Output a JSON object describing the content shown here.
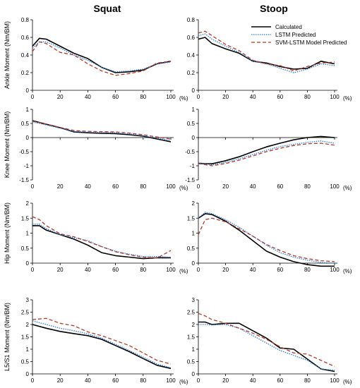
{
  "columns": [
    "Squat",
    "Stoop"
  ],
  "legend": [
    {
      "label": "Calculated",
      "color": "#000000",
      "dash": "none"
    },
    {
      "label": "LSTM Predicted",
      "color": "#2f7fd6",
      "dash": "1.5,1.5"
    },
    {
      "label": "SVM-LSTM Model Predicted",
      "color": "#b23a2a",
      "dash": "5,3"
    }
  ],
  "x_unit": "(%)",
  "chart_data": [
    {
      "type": "line",
      "id": "ankle-squat",
      "ylabel": "Ankle Moment (Nm/BM)",
      "xlim": [
        0,
        100
      ],
      "ylim": [
        0,
        0.8
      ],
      "xticks": [
        0,
        20,
        40,
        60,
        80,
        100
      ],
      "yticks": [
        "0",
        "0.2",
        "0.4",
        "0.6",
        "0.8"
      ],
      "x": [
        0,
        5,
        10,
        20,
        30,
        40,
        50,
        60,
        70,
        80,
        90,
        100
      ],
      "series": [
        {
          "name": "Calculated",
          "values": [
            0.5,
            0.59,
            0.58,
            0.5,
            0.42,
            0.36,
            0.26,
            0.2,
            0.21,
            0.23,
            0.3,
            0.33
          ]
        },
        {
          "name": "LSTM Predicted",
          "values": [
            0.48,
            0.55,
            0.55,
            0.48,
            0.4,
            0.34,
            0.26,
            0.21,
            0.22,
            0.24,
            0.3,
            0.32
          ]
        },
        {
          "name": "SVM-LSTM Model Predicted",
          "values": [
            0.44,
            0.55,
            0.53,
            0.43,
            0.4,
            0.3,
            0.22,
            0.17,
            0.19,
            0.22,
            0.31,
            0.33
          ]
        }
      ]
    },
    {
      "type": "line",
      "id": "ankle-stoop",
      "ylabel": "",
      "xlim": [
        0,
        100
      ],
      "ylim": [
        0,
        0.8
      ],
      "xticks": [
        0,
        20,
        40,
        60,
        80,
        100
      ],
      "yticks": [
        "0",
        "0.2",
        "0.4",
        "0.6",
        "0.8"
      ],
      "x": [
        0,
        5,
        10,
        20,
        30,
        40,
        50,
        60,
        70,
        80,
        90,
        100
      ],
      "series": [
        {
          "name": "Calculated",
          "values": [
            0.58,
            0.6,
            0.53,
            0.47,
            0.42,
            0.33,
            0.31,
            0.27,
            0.24,
            0.25,
            0.33,
            0.3
          ]
        },
        {
          "name": "LSTM Predicted",
          "values": [
            0.62,
            0.64,
            0.58,
            0.5,
            0.43,
            0.33,
            0.3,
            0.25,
            0.2,
            0.24,
            0.3,
            0.28
          ]
        },
        {
          "name": "SVM-LSTM Model Predicted",
          "values": [
            0.65,
            0.67,
            0.62,
            0.52,
            0.45,
            0.34,
            0.3,
            0.28,
            0.22,
            0.27,
            0.31,
            0.32
          ]
        }
      ]
    },
    {
      "type": "line",
      "id": "knee-squat",
      "ylabel": "Knee Moment (Nm/BM)",
      "xlim": [
        0,
        100
      ],
      "ylim": [
        -1.5,
        1
      ],
      "xticks": [
        0,
        20,
        40,
        60,
        80,
        100
      ],
      "yticks": [
        "-1.5",
        "-1",
        "-0.5",
        "0",
        "0.5",
        "1"
      ],
      "x": [
        0,
        10,
        20,
        30,
        40,
        50,
        60,
        70,
        80,
        90,
        100
      ],
      "series": [
        {
          "name": "Calculated",
          "values": [
            0.6,
            0.47,
            0.35,
            0.2,
            0.17,
            0.15,
            0.14,
            0.1,
            0.05,
            -0.05,
            -0.15
          ]
        },
        {
          "name": "LSTM Predicted",
          "values": [
            0.55,
            0.45,
            0.33,
            0.22,
            0.19,
            0.18,
            0.17,
            0.13,
            0.07,
            -0.02,
            -0.1
          ]
        },
        {
          "name": "SVM-LSTM Model Predicted",
          "values": [
            0.58,
            0.48,
            0.36,
            0.25,
            0.22,
            0.21,
            0.2,
            0.16,
            0.1,
            0.02,
            -0.05
          ]
        }
      ]
    },
    {
      "type": "line",
      "id": "knee-stoop",
      "ylabel": "",
      "xlim": [
        0,
        100
      ],
      "ylim": [
        -1.5,
        1
      ],
      "xticks": [
        0,
        20,
        40,
        60,
        80,
        100
      ],
      "yticks": [
        "-1.5",
        "-1",
        "-0.5",
        "0",
        "0.5",
        "1"
      ],
      "x": [
        0,
        10,
        20,
        30,
        40,
        50,
        60,
        70,
        80,
        90,
        100
      ],
      "series": [
        {
          "name": "Calculated",
          "values": [
            -0.92,
            -0.93,
            -0.82,
            -0.68,
            -0.5,
            -0.33,
            -0.2,
            -0.08,
            0.0,
            0.04,
            0.0
          ]
        },
        {
          "name": "LSTM Predicted",
          "values": [
            -0.88,
            -0.97,
            -0.88,
            -0.75,
            -0.6,
            -0.45,
            -0.32,
            -0.24,
            -0.17,
            -0.12,
            -0.2
          ]
        },
        {
          "name": "SVM-LSTM Model Predicted",
          "values": [
            -0.92,
            -1.0,
            -0.92,
            -0.8,
            -0.65,
            -0.5,
            -0.38,
            -0.28,
            -0.22,
            -0.2,
            -0.27
          ]
        }
      ]
    },
    {
      "type": "line",
      "id": "hip-squat",
      "ylabel": "Hip Moment (Nm/BM)",
      "xlim": [
        0,
        100
      ],
      "ylim": [
        0,
        2
      ],
      "xticks": [
        0,
        20,
        40,
        60,
        80,
        100
      ],
      "yticks": [
        "0",
        "0.5",
        "1",
        "1.5",
        "2"
      ],
      "x": [
        0,
        5,
        10,
        20,
        30,
        40,
        50,
        60,
        70,
        80,
        90,
        100
      ],
      "series": [
        {
          "name": "Calculated",
          "values": [
            1.25,
            1.25,
            1.1,
            0.95,
            0.8,
            0.6,
            0.35,
            0.25,
            0.2,
            0.15,
            0.18,
            0.18
          ]
        },
        {
          "name": "LSTM Predicted",
          "values": [
            1.3,
            1.3,
            1.15,
            0.95,
            0.85,
            0.75,
            0.55,
            0.4,
            0.3,
            0.22,
            0.22,
            0.2
          ]
        },
        {
          "name": "SVM-LSTM Model Predicted",
          "values": [
            1.55,
            1.45,
            1.25,
            0.98,
            0.88,
            0.72,
            0.55,
            0.38,
            0.28,
            0.2,
            0.17,
            0.42
          ]
        }
      ]
    },
    {
      "type": "line",
      "id": "hip-stoop",
      "ylabel": "",
      "xlim": [
        0,
        100
      ],
      "ylim": [
        0,
        2
      ],
      "xticks": [
        0,
        20,
        40,
        60,
        80,
        100
      ],
      "yticks": [
        "0",
        "0.5",
        "1",
        "1.5",
        "2"
      ],
      "x": [
        0,
        5,
        10,
        20,
        30,
        40,
        50,
        60,
        70,
        80,
        90,
        100
      ],
      "series": [
        {
          "name": "Calculated",
          "values": [
            1.5,
            1.65,
            1.62,
            1.4,
            1.1,
            0.75,
            0.4,
            0.2,
            0.05,
            -0.05,
            -0.1,
            -0.1
          ]
        },
        {
          "name": "LSTM Predicted",
          "values": [
            1.5,
            1.7,
            1.65,
            1.45,
            1.2,
            0.9,
            0.6,
            0.35,
            0.2,
            0.1,
            0.02,
            0.0
          ]
        },
        {
          "name": "SVM-LSTM Model Predicted",
          "values": [
            0.95,
            1.45,
            1.5,
            1.38,
            1.15,
            0.9,
            0.62,
            0.42,
            0.25,
            0.15,
            0.08,
            0.05
          ]
        }
      ]
    },
    {
      "type": "line",
      "id": "l5s1-squat",
      "ylabel": "L5/S1 Moment (Nm/BM)",
      "xlim": [
        0,
        100
      ],
      "ylim": [
        0,
        3
      ],
      "xticks": [
        0,
        20,
        40,
        60,
        80,
        100
      ],
      "yticks": [
        "0",
        "0.5",
        "1",
        "1.5",
        "2",
        "2.5",
        "3"
      ],
      "x": [
        0,
        10,
        20,
        30,
        40,
        50,
        60,
        70,
        80,
        90,
        100
      ],
      "series": [
        {
          "name": "Calculated",
          "values": [
            2.0,
            1.85,
            1.72,
            1.63,
            1.55,
            1.4,
            1.15,
            0.9,
            0.62,
            0.35,
            0.22
          ]
        },
        {
          "name": "LSTM Predicted",
          "values": [
            2.15,
            2.0,
            1.85,
            1.75,
            1.62,
            1.45,
            1.2,
            0.95,
            0.68,
            0.4,
            0.25
          ]
        },
        {
          "name": "SVM-LSTM Model Predicted",
          "values": [
            2.2,
            2.25,
            2.05,
            1.95,
            1.7,
            1.55,
            1.35,
            1.15,
            0.85,
            0.55,
            0.4
          ]
        }
      ]
    },
    {
      "type": "line",
      "id": "l5s1-stoop",
      "ylabel": "",
      "xlim": [
        0,
        100
      ],
      "ylim": [
        0,
        3
      ],
      "xticks": [
        0,
        20,
        40,
        60,
        80,
        100
      ],
      "yticks": [
        "0",
        "0.5",
        "1",
        "1.5",
        "2",
        "2.5",
        "3"
      ],
      "x": [
        0,
        5,
        10,
        20,
        30,
        40,
        50,
        60,
        70,
        80,
        90,
        100
      ],
      "series": [
        {
          "name": "Calculated",
          "values": [
            2.1,
            2.1,
            2.0,
            2.05,
            2.05,
            1.75,
            1.45,
            1.05,
            1.0,
            0.6,
            0.2,
            0.1
          ]
        },
        {
          "name": "LSTM Predicted",
          "values": [
            2.0,
            2.0,
            1.98,
            2.0,
            1.85,
            1.55,
            1.25,
            0.95,
            0.75,
            0.55,
            0.2,
            0.15
          ]
        },
        {
          "name": "SVM-LSTM Model Predicted",
          "values": [
            2.45,
            2.35,
            2.2,
            2.05,
            1.85,
            1.65,
            1.4,
            1.1,
            0.85,
            0.8,
            0.55,
            0.3
          ]
        }
      ]
    }
  ]
}
